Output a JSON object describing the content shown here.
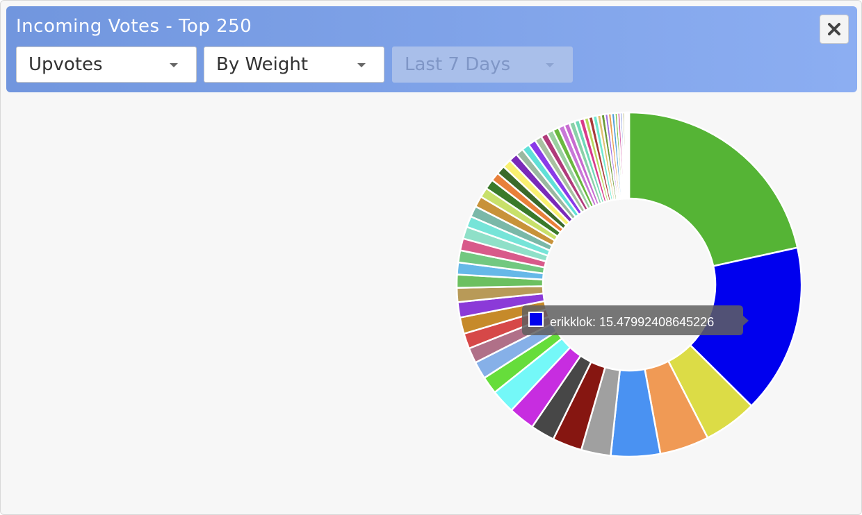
{
  "header": {
    "title": "Incoming Votes - Top 250"
  },
  "dropdowns": [
    {
      "label": "Upvotes"
    },
    {
      "label": "By Weight"
    },
    {
      "label": "Last 7 Days"
    }
  ],
  "chart_data": {
    "type": "donut",
    "categories": [
      null,
      "erikklok",
      null,
      null,
      null,
      null,
      null,
      null,
      null,
      null,
      null,
      null,
      null,
      null,
      null,
      null,
      null,
      null,
      null,
      null,
      null,
      null,
      null,
      null,
      null,
      null,
      null,
      null,
      null,
      null,
      null,
      null,
      null,
      null,
      null,
      null,
      null,
      null,
      null,
      null,
      null,
      null,
      null,
      null,
      null,
      null,
      null,
      null,
      null,
      null,
      null,
      null,
      null,
      null,
      null,
      null,
      null,
      null
    ],
    "values": [
      21,
      15.47992408645226,
      4.9,
      4.5,
      4.5,
      2.7,
      2.7,
      2.2,
      2.4,
      2.2,
      1.6,
      1.6,
      1.4,
      1.4,
      1.5,
      1.4,
      1.3,
      1.2,
      1.1,
      1.1,
      1.1,
      1.1,
      1.0,
      1.0,
      1.0,
      0.9,
      0.9,
      0.8,
      0.8,
      0.8,
      0.8,
      0.7,
      0.7,
      0.7,
      0.65,
      0.6,
      0.6,
      0.55,
      0.55,
      0.5,
      0.5,
      0.45,
      0.45,
      0.4,
      0.4,
      0.4,
      0.35,
      0.35,
      0.3,
      0.3,
      0.3,
      0.25,
      0.25,
      0.2,
      0.2,
      0.15,
      0.15,
      0.1
    ],
    "colors": [
      "#55b435",
      "#0000ee",
      "#dcdc46",
      "#f09a55",
      "#4a92f2",
      "#a0a0a0",
      "#861611",
      "#474747",
      "#c72de0",
      "#74f8f8",
      "#66dd3b",
      "#86b0e8",
      "#b07088",
      "#d64848",
      "#c68a2a",
      "#8b3ad8",
      "#b89a58",
      "#6cc060",
      "#66b8e8",
      "#72c880",
      "#d85a8a",
      "#8fe0c8",
      "#76e4d8",
      "#7ab8a8",
      "#c8923a",
      "#c8e06a",
      "#3a7a2a",
      "#e8803a",
      "#3a6a2a",
      "#f8f070",
      "#7a2ab8",
      "#9ab8a0",
      "#60e0d8",
      "#8a3ae8",
      "#a8c0a0",
      "#b03a7a",
      "#9ad0a0",
      "#6ab840",
      "#c878d8",
      "#c86ad0",
      "#8ad0a8",
      "#70d8b8",
      "#d83a8a",
      "#b8d860",
      "#a83a3a",
      "#70e8d0",
      "#e0c070",
      "#6a9a3a",
      "#a070e0",
      "#e8a050",
      "#50a0d8",
      "#80c040",
      "#d050a0",
      "#3a5ac8",
      "#a0a050",
      "#d0d0d0",
      "#6040a0",
      "#303030"
    ]
  }
}
